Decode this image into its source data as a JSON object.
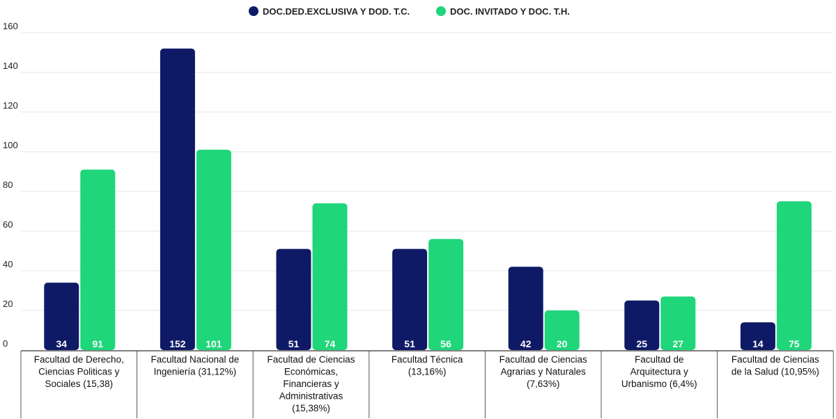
{
  "chart_data": {
    "type": "bar",
    "categories": [
      "Facultad de Derecho, Ciencias Políticas y Sociales (15,38)",
      "Facultad Nacional de Ingeniería (31,12%)",
      "Facultad de Ciencias Económicas, Financieras y Administrativas (15,38%)",
      "Facultad Técnica (13,16%)",
      "Facultad de Ciencias Agrarias y Naturales (7,63%)",
      "Facultad de Arquitectura y Urbanismo (6,4%)",
      "Facultad de Ciencias de la Salud (10,95%)"
    ],
    "category_lines": [
      [
        "Facultad de Derecho,",
        "Ciencias Politicas y",
        "Sociales (15,38)"
      ],
      [
        "Facultad Nacional de",
        "Ingeniería (31,12%)"
      ],
      [
        "Facultad de Ciencias",
        "Económicas,",
        "Financieras y",
        "Administrativas",
        "(15,38%)"
      ],
      [
        "Facultad Técnica",
        "(13,16%)"
      ],
      [
        "Facultad de Ciencias",
        "Agrarias y Naturales",
        "(7,63%)"
      ],
      [
        "Facultad de",
        "Arquitectura y",
        "Urbanismo (6,4%)"
      ],
      [
        "Facultad de Ciencias",
        "de la Salud (10,95%)"
      ]
    ],
    "series": [
      {
        "name": "DOC.DED.EXCLUSIVA Y DOD. T.C.",
        "color": "#0f1a66",
        "values": [
          34,
          152,
          51,
          51,
          42,
          25,
          14
        ]
      },
      {
        "name": "DOC. INVITADO Y DOC. T.H.",
        "color": "#1fd67a",
        "values": [
          91,
          101,
          74,
          56,
          20,
          27,
          75
        ]
      }
    ],
    "yticks": [
      "0",
      "20",
      "40",
      "60",
      "80",
      "100",
      "120",
      "140",
      "160"
    ],
    "ylim": [
      0,
      160
    ],
    "grid": true,
    "legend_position": "top-center",
    "data_labels": "inside-bottom"
  }
}
